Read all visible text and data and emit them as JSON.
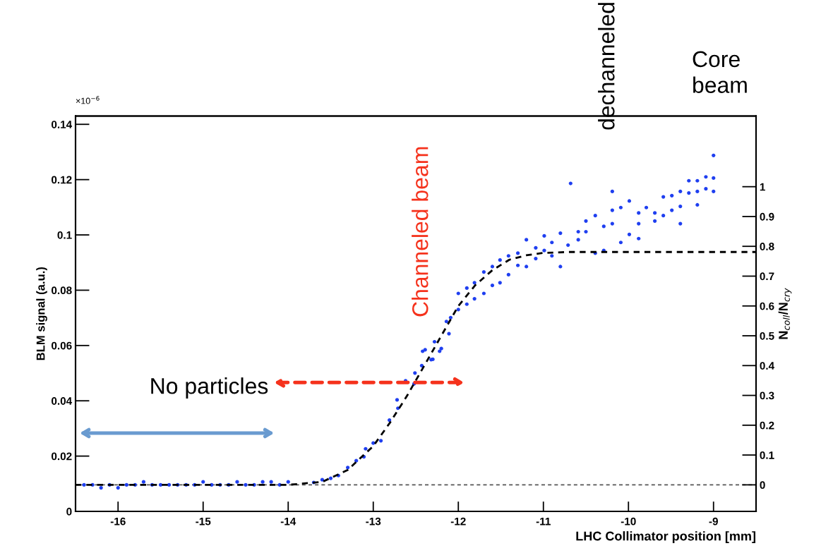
{
  "chart_data": {
    "type": "scatter",
    "xlabel": "LHC Collimator position [mm]",
    "ylabel": "BLM signal (a.u.)",
    "y2label": "N$_{coll}$/N$_{cry}$",
    "xlim": [
      -16.5,
      -8.5
    ],
    "xticks": [
      -16,
      -15,
      -14,
      -13,
      -12,
      -11,
      -10,
      -9
    ],
    "ylim": [
      0,
      0.143
    ],
    "yticks": [
      0,
      0.02,
      0.04,
      0.06,
      0.08,
      0.1,
      0.12,
      0.14
    ],
    "y2lim": [
      -0.089,
      1.237
    ],
    "y2ticks": [
      0,
      0.1,
      0.2,
      0.3,
      0.4,
      0.5,
      0.6,
      0.7,
      0.8,
      0.9,
      1
    ],
    "marker": "circle",
    "series": [
      {
        "type": "scatter",
        "axis": "y2",
        "color": "#1f3ff0",
        "x": [
          -16.4,
          -16.3,
          -16.2,
          -16.1,
          -16.0,
          -15.9,
          -15.8,
          -15.7,
          -15.6,
          -15.5,
          -15.4,
          -15.3,
          -15.2,
          -15.1,
          -15.0,
          -14.9,
          -14.8,
          -14.7,
          -14.6,
          -14.5,
          -14.4,
          -14.3,
          -14.2,
          -14.1,
          -14.0,
          -13.7,
          -13.6,
          -13.5,
          -13.41,
          -13.3,
          -13.2,
          -13.11,
          -13.09,
          -13.0,
          -12.91,
          -12.81,
          -12.72,
          -12.71,
          -12.62,
          -12.52,
          -12.51,
          -12.43,
          -12.42,
          -12.39,
          -12.32,
          -12.3,
          -12.28,
          -12.22,
          -12.2,
          -12.14,
          -12.11,
          -12.09,
          -12.0,
          -12.0,
          -11.9,
          -11.9,
          -11.81,
          -11.81,
          -11.7,
          -11.7,
          -11.6,
          -11.6,
          -11.51,
          -11.51,
          -11.41,
          -11.41,
          -11.3,
          -11.3,
          -11.2,
          -11.2,
          -11.09,
          -11.09,
          -10.99,
          -10.99,
          -10.9,
          -10.9,
          -10.8,
          -10.8,
          -10.71,
          -10.68,
          -10.59,
          -10.59,
          -10.5,
          -10.5,
          -10.39,
          -10.39,
          -10.29,
          -10.29,
          -10.19,
          -10.19,
          -10.19,
          -10.09,
          -10.09,
          -9.99,
          -9.99,
          -9.88,
          -9.88,
          -9.88,
          -9.79,
          -9.69,
          -9.69,
          -9.59,
          -9.59,
          -9.49,
          -9.49,
          -9.39,
          -9.39,
          -9.39,
          -9.29,
          -9.29,
          -9.19,
          -9.19,
          -9.19,
          -9.09,
          -9.09,
          -9.0,
          -9.0,
          -9.0
        ],
        "values": [
          0,
          0,
          -0.01,
          0,
          -0.01,
          0,
          0,
          0.01,
          0,
          0,
          0,
          0,
          0,
          0,
          0.01,
          0,
          0,
          0,
          0.01,
          0,
          0,
          0.01,
          0.01,
          0,
          0.01,
          0.008,
          0.017,
          0.022,
          0.031,
          0.058,
          0.081,
          0.094,
          0.121,
          0.14,
          0.148,
          0.217,
          0.285,
          0.257,
          0.349,
          0.339,
          0.375,
          0.4,
          0.448,
          0.453,
          0.42,
          0.421,
          0.48,
          0.448,
          0.457,
          0.548,
          0.507,
          0.561,
          0.642,
          0.588,
          0.66,
          0.606,
          0.678,
          0.624,
          0.714,
          0.642,
          0.732,
          0.669,
          0.754,
          0.678,
          0.768,
          0.705,
          0.777,
          0.736,
          0.822,
          0.732,
          0.795,
          0.759,
          0.835,
          0.786,
          0.813,
          0.768,
          0.844,
          0.732,
          0.804,
          1.011,
          0.849,
          0.822,
          0.885,
          0.849,
          0.903,
          0.777,
          0.867,
          0.786,
          0.984,
          0.921,
          0.876,
          0.93,
          0.813,
          0.952,
          0.84,
          0.912,
          0.876,
          0.826,
          0.93,
          0.912,
          0.885,
          0.966,
          0.903,
          0.921,
          0.97,
          0.984,
          0.934,
          0.876,
          1.02,
          0.979,
          1.02,
          0.984,
          0.939,
          1.033,
          0.993,
          1.105,
          1.029,
          0.984
        ]
      },
      {
        "type": "line",
        "axis": "y2",
        "color": "#000000",
        "line_style": "dashed",
        "marker": "none",
        "x": [
          -16.5,
          -14.0,
          -13.6,
          -13.3,
          -13.0,
          -12.8,
          -12.6,
          -12.4,
          -12.2,
          -12.0,
          -11.8,
          -11.6,
          -11.4,
          -11.2,
          -11.0,
          -10.7,
          -8.5
        ],
        "values": [
          0,
          0,
          0.01,
          0.05,
          0.13,
          0.21,
          0.3,
          0.4,
          0.5,
          0.6,
          0.67,
          0.72,
          0.755,
          0.77,
          0.778,
          0.781,
          0.781
        ]
      }
    ],
    "ref_lines": [
      {
        "axis": "y2",
        "value": 0,
        "color": "#555555",
        "line_style": "dashed"
      }
    ],
    "annotations": [
      "×10$^{−6}$",
      "dechanneled",
      "Core\nbeam",
      "No particles",
      "Channeled beam"
    ]
  }
}
